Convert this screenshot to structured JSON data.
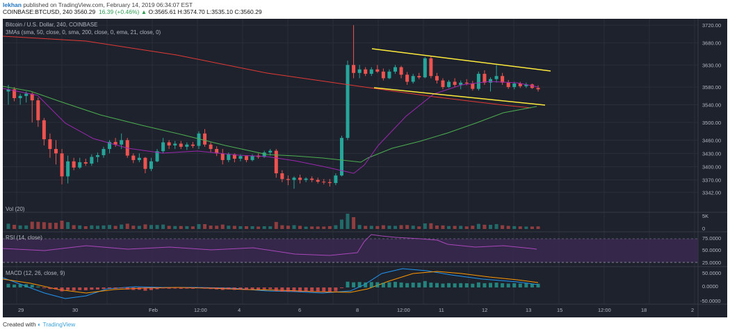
{
  "header": {
    "user": "lekhan",
    "published_text": "published on TradingView.com, February 14, 2019 06:34:07 EST",
    "quote": "COINBASE:BTCUSD, 240  3560.29",
    "change": "16.39 (+0.46%)",
    "ohlc": "O:3565.61 H:3574.70 L:3535.10 C:3560.29"
  },
  "footer": {
    "created_with": "Created with",
    "brand": "TradingView"
  },
  "colors": {
    "bg": "#1e222d",
    "up": "#26a69a",
    "down": "#ef5350",
    "sma50": "#9c27b0",
    "sma200": "#e53935",
    "ema21": "#4caf50",
    "channel": "#ffeb3b",
    "macd": "#2196f3",
    "signal": "#ff9800",
    "rsi_band": "#3d2a55"
  },
  "chart_data": {
    "type": "candlestick",
    "title": "Bitcoin / U.S. Dollar, 240, COINBASE",
    "indicator_label": "3MAs (sma, 50, close, 0, sma, 200, close, 0, ema, 21, close, 0)",
    "ylim": [
      3322,
      3725
    ],
    "price_ticks": [
      "3720.00",
      "3680.00",
      "3630.00",
      "3580.00",
      "3540.00",
      "3500.00",
      "3460.00",
      "3430.00",
      "3400.00",
      "3370.00",
      "3342.00"
    ],
    "x_ticks": [
      "29",
      "30",
      "Feb",
      "12:00",
      "4",
      "6",
      "8",
      "12:00",
      "11",
      "12",
      "13",
      "15",
      "12:00",
      "18",
      "2"
    ],
    "candles": [
      {
        "o": 3570,
        "h": 3585,
        "l": 3540,
        "c": 3575
      },
      {
        "o": 3575,
        "h": 3580,
        "l": 3548,
        "c": 3555
      },
      {
        "o": 3555,
        "h": 3565,
        "l": 3540,
        "c": 3560
      },
      {
        "o": 3560,
        "h": 3570,
        "l": 3545,
        "c": 3565
      },
      {
        "o": 3565,
        "h": 3568,
        "l": 3500,
        "c": 3550
      },
      {
        "o": 3550,
        "h": 3556,
        "l": 3490,
        "c": 3505
      },
      {
        "o": 3505,
        "h": 3510,
        "l": 3448,
        "c": 3462
      },
      {
        "o": 3462,
        "h": 3475,
        "l": 3420,
        "c": 3440
      },
      {
        "o": 3440,
        "h": 3460,
        "l": 3405,
        "c": 3430
      },
      {
        "o": 3430,
        "h": 3440,
        "l": 3360,
        "c": 3378
      },
      {
        "o": 3378,
        "h": 3425,
        "l": 3362,
        "c": 3412
      },
      {
        "o": 3412,
        "h": 3420,
        "l": 3392,
        "c": 3398
      },
      {
        "o": 3398,
        "h": 3420,
        "l": 3395,
        "c": 3410
      },
      {
        "o": 3410,
        "h": 3418,
        "l": 3402,
        "c": 3407
      },
      {
        "o": 3407,
        "h": 3428,
        "l": 3402,
        "c": 3422
      },
      {
        "o": 3422,
        "h": 3432,
        "l": 3410,
        "c": 3426
      },
      {
        "o": 3426,
        "h": 3445,
        "l": 3420,
        "c": 3440
      },
      {
        "o": 3440,
        "h": 3460,
        "l": 3430,
        "c": 3456
      },
      {
        "o": 3456,
        "h": 3465,
        "l": 3445,
        "c": 3450
      },
      {
        "o": 3450,
        "h": 3475,
        "l": 3440,
        "c": 3460
      },
      {
        "o": 3460,
        "h": 3465,
        "l": 3420,
        "c": 3425
      },
      {
        "o": 3425,
        "h": 3430,
        "l": 3408,
        "c": 3415
      },
      {
        "o": 3415,
        "h": 3430,
        "l": 3410,
        "c": 3420
      },
      {
        "o": 3420,
        "h": 3422,
        "l": 3385,
        "c": 3395
      },
      {
        "o": 3395,
        "h": 3420,
        "l": 3390,
        "c": 3412
      },
      {
        "o": 3412,
        "h": 3440,
        "l": 3410,
        "c": 3435
      },
      {
        "o": 3435,
        "h": 3465,
        "l": 3430,
        "c": 3455
      },
      {
        "o": 3455,
        "h": 3460,
        "l": 3440,
        "c": 3448
      },
      {
        "o": 3448,
        "h": 3458,
        "l": 3440,
        "c": 3452
      },
      {
        "o": 3452,
        "h": 3458,
        "l": 3440,
        "c": 3445
      },
      {
        "o": 3445,
        "h": 3455,
        "l": 3438,
        "c": 3450
      },
      {
        "o": 3450,
        "h": 3456,
        "l": 3442,
        "c": 3447
      },
      {
        "o": 3447,
        "h": 3480,
        "l": 3440,
        "c": 3475
      },
      {
        "o": 3475,
        "h": 3485,
        "l": 3445,
        "c": 3450
      },
      {
        "o": 3450,
        "h": 3455,
        "l": 3432,
        "c": 3440
      },
      {
        "o": 3440,
        "h": 3446,
        "l": 3424,
        "c": 3430
      },
      {
        "o": 3430,
        "h": 3440,
        "l": 3405,
        "c": 3415
      },
      {
        "o": 3415,
        "h": 3432,
        "l": 3410,
        "c": 3428
      },
      {
        "o": 3428,
        "h": 3430,
        "l": 3410,
        "c": 3418
      },
      {
        "o": 3418,
        "h": 3428,
        "l": 3412,
        "c": 3424
      },
      {
        "o": 3424,
        "h": 3426,
        "l": 3410,
        "c": 3415
      },
      {
        "o": 3415,
        "h": 3428,
        "l": 3412,
        "c": 3425
      },
      {
        "o": 3425,
        "h": 3430,
        "l": 3418,
        "c": 3422
      },
      {
        "o": 3422,
        "h": 3436,
        "l": 3420,
        "c": 3432
      },
      {
        "o": 3432,
        "h": 3440,
        "l": 3425,
        "c": 3436
      },
      {
        "o": 3436,
        "h": 3440,
        "l": 3375,
        "c": 3385
      },
      {
        "o": 3385,
        "h": 3392,
        "l": 3365,
        "c": 3372
      },
      {
        "o": 3372,
        "h": 3380,
        "l": 3358,
        "c": 3370
      },
      {
        "o": 3370,
        "h": 3378,
        "l": 3350,
        "c": 3375
      },
      {
        "o": 3375,
        "h": 3382,
        "l": 3362,
        "c": 3370
      },
      {
        "o": 3370,
        "h": 3376,
        "l": 3365,
        "c": 3373
      },
      {
        "o": 3373,
        "h": 3378,
        "l": 3365,
        "c": 3370
      },
      {
        "o": 3370,
        "h": 3375,
        "l": 3362,
        "c": 3366
      },
      {
        "o": 3366,
        "h": 3372,
        "l": 3360,
        "c": 3365
      },
      {
        "o": 3365,
        "h": 3372,
        "l": 3355,
        "c": 3363
      },
      {
        "o": 3363,
        "h": 3385,
        "l": 3358,
        "c": 3380
      },
      {
        "o": 3380,
        "h": 3470,
        "l": 3378,
        "c": 3465
      },
      {
        "o": 3465,
        "h": 3640,
        "l": 3460,
        "c": 3630
      },
      {
        "o": 3630,
        "h": 3720,
        "l": 3600,
        "c": 3612
      },
      {
        "o": 3612,
        "h": 3630,
        "l": 3600,
        "c": 3620
      },
      {
        "o": 3620,
        "h": 3625,
        "l": 3605,
        "c": 3610
      },
      {
        "o": 3610,
        "h": 3625,
        "l": 3605,
        "c": 3620
      },
      {
        "o": 3620,
        "h": 3630,
        "l": 3612,
        "c": 3615
      },
      {
        "o": 3615,
        "h": 3622,
        "l": 3595,
        "c": 3600
      },
      {
        "o": 3600,
        "h": 3620,
        "l": 3598,
        "c": 3615
      },
      {
        "o": 3615,
        "h": 3630,
        "l": 3610,
        "c": 3625
      },
      {
        "o": 3625,
        "h": 3628,
        "l": 3600,
        "c": 3608
      },
      {
        "o": 3608,
        "h": 3614,
        "l": 3585,
        "c": 3592
      },
      {
        "o": 3592,
        "h": 3610,
        "l": 3588,
        "c": 3605
      },
      {
        "o": 3605,
        "h": 3612,
        "l": 3598,
        "c": 3602
      },
      {
        "o": 3602,
        "h": 3648,
        "l": 3600,
        "c": 3645
      },
      {
        "o": 3645,
        "h": 3650,
        "l": 3600,
        "c": 3605
      },
      {
        "o": 3605,
        "h": 3612,
        "l": 3588,
        "c": 3595
      },
      {
        "o": 3595,
        "h": 3600,
        "l": 3575,
        "c": 3580
      },
      {
        "o": 3580,
        "h": 3596,
        "l": 3578,
        "c": 3592
      },
      {
        "o": 3592,
        "h": 3600,
        "l": 3580,
        "c": 3585
      },
      {
        "o": 3585,
        "h": 3595,
        "l": 3575,
        "c": 3590
      },
      {
        "o": 3590,
        "h": 3598,
        "l": 3584,
        "c": 3588
      },
      {
        "o": 3588,
        "h": 3594,
        "l": 3572,
        "c": 3576
      },
      {
        "o": 3576,
        "h": 3615,
        "l": 3572,
        "c": 3610
      },
      {
        "o": 3610,
        "h": 3618,
        "l": 3585,
        "c": 3590
      },
      {
        "o": 3590,
        "h": 3602,
        "l": 3570,
        "c": 3598
      },
      {
        "o": 3598,
        "h": 3630,
        "l": 3590,
        "c": 3605
      },
      {
        "o": 3605,
        "h": 3612,
        "l": 3585,
        "c": 3590
      },
      {
        "o": 3590,
        "h": 3596,
        "l": 3576,
        "c": 3580
      },
      {
        "o": 3580,
        "h": 3592,
        "l": 3575,
        "c": 3588
      },
      {
        "o": 3588,
        "h": 3592,
        "l": 3578,
        "c": 3582
      },
      {
        "o": 3582,
        "h": 3590,
        "l": 3578,
        "c": 3586
      },
      {
        "o": 3586,
        "h": 3588,
        "l": 3576,
        "c": 3578
      },
      {
        "o": 3578,
        "h": 3584,
        "l": 3570,
        "c": 3575
      }
    ]
  },
  "panes": {
    "volume": {
      "label": "Vol (20)",
      "ticks": [
        "5K",
        "0"
      ]
    },
    "rsi": {
      "label": "RSI (14, close)",
      "ticks": [
        "75.0000",
        "50.0000",
        "25.0000"
      ]
    },
    "macd": {
      "label": "MACD (12, 26, close, 9)",
      "ticks": [
        "50.0000",
        "0.0000",
        "-50.0000"
      ]
    }
  }
}
